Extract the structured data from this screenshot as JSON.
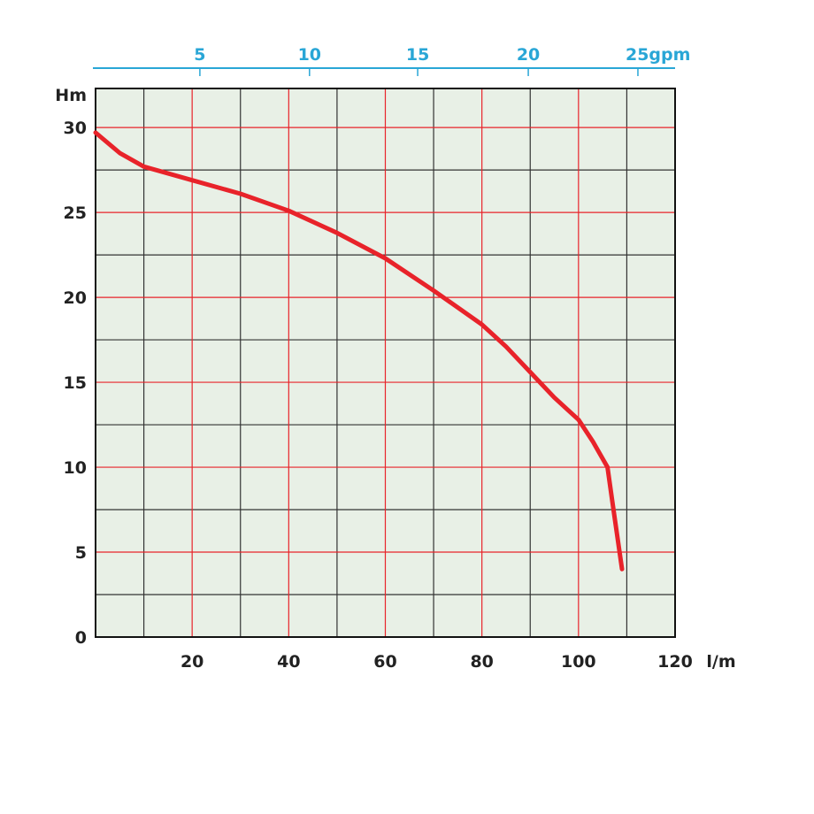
{
  "chart_data": {
    "type": "line",
    "title": "",
    "xlabel": "l/m",
    "ylabel": "Hm",
    "secondary_xlabel": "gpm",
    "xlim": [
      0,
      120
    ],
    "ylim": [
      0,
      32.3
    ],
    "grid": true,
    "x_ticks": [
      20,
      40,
      60,
      80,
      100,
      120
    ],
    "x_tick_labels": [
      "20",
      "40",
      "60",
      "80",
      "100",
      "120"
    ],
    "y_ticks": [
      0,
      5,
      10,
      15,
      20,
      25,
      30
    ],
    "y_tick_labels": [
      "0",
      "5",
      "10",
      "15",
      "20",
      "25",
      "30"
    ],
    "gpm_ticks": [
      {
        "label": "5",
        "at_lpm": 21.6
      },
      {
        "label": "10",
        "at_lpm": 44.3
      },
      {
        "label": "15",
        "at_lpm": 66.7
      },
      {
        "label": "20",
        "at_lpm": 89.6
      },
      {
        "label": "25gpm",
        "at_lpm": 112.3
      }
    ],
    "series": [
      {
        "name": "pump curve",
        "color": "#e8232a",
        "x": [
          0,
          5,
          10,
          20,
          30,
          40,
          50,
          60,
          70,
          80,
          85,
          90,
          95,
          100,
          103,
          106,
          107,
          108,
          109
        ],
        "y": [
          29.7,
          28.5,
          27.7,
          26.9,
          26.1,
          25.1,
          23.8,
          22.3,
          20.4,
          18.4,
          17.1,
          15.6,
          14.1,
          12.8,
          11.5,
          10.0,
          8.0,
          6.0,
          4.0
        ]
      }
    ],
    "colors": {
      "plot_bg": "#e8f0e6",
      "major_grid": "#e8232a",
      "minor_grid": "#333333",
      "gpm_axis": "#29a6d6"
    }
  }
}
